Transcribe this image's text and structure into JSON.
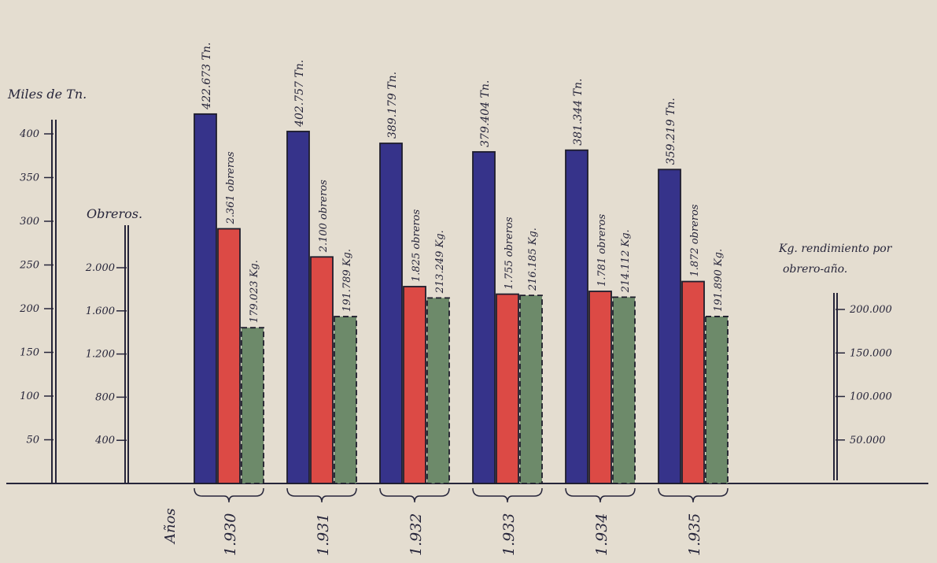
{
  "chart_data": {
    "type": "bar",
    "categories": [
      "1.930",
      "1.931",
      "1.932",
      "1.933",
      "1.934",
      "1.935"
    ],
    "x_axis_label": "Años",
    "series": [
      {
        "name": "Miles de Tn.",
        "color": "#36338a",
        "values": [
          422.673,
          402.757,
          389.179,
          379.404,
          381.344,
          359.219
        ],
        "labels": [
          "422.673 Tn.",
          "402.757 Tn.",
          "389.179 Tn.",
          "379.404 Tn.",
          "381.344 Tn.",
          "359.219 Tn."
        ]
      },
      {
        "name": "Obreros",
        "color": "#dc4a45",
        "values": [
          2361,
          2100,
          1825,
          1755,
          1781,
          1872
        ],
        "labels": [
          "2.361 obreros",
          "2.100 obreros",
          "1.825 obreros",
          "1.755 obreros",
          "1.781 obreros",
          "1.872 obreros"
        ]
      },
      {
        "name": "Kg. rendimiento por obrero-año.",
        "color": "#6d8a6a",
        "values": [
          179023,
          191789,
          213249,
          216185,
          214112,
          191890
        ],
        "labels": [
          "179.023 Kg.",
          "191.789 Kg.",
          "213.249 Kg.",
          "216.185 Kg.",
          "214.112 Kg.",
          "191.890 Kg."
        ]
      }
    ],
    "axes": {
      "tonnes": {
        "title": "Miles de Tn.",
        "ticks": [
          50,
          100,
          150,
          200,
          250,
          300,
          350,
          400
        ],
        "tick_labels": [
          "50",
          "100",
          "150",
          "200",
          "250",
          "300",
          "350",
          "400"
        ]
      },
      "workers": {
        "title": "Obreros.",
        "ticks": [
          400,
          800,
          1200,
          1600,
          2000
        ],
        "tick_labels": [
          "400",
          "800",
          "1.200",
          "1.600",
          "2.000"
        ]
      },
      "kg": {
        "title_line1": "Kg. rendimiento por",
        "title_line2": "obrero-año.",
        "ticks": [
          50000,
          100000,
          150000,
          200000
        ],
        "tick_labels": [
          "50.000",
          "100.000",
          "150.000",
          "200.000"
        ]
      }
    },
    "grid": false
  }
}
